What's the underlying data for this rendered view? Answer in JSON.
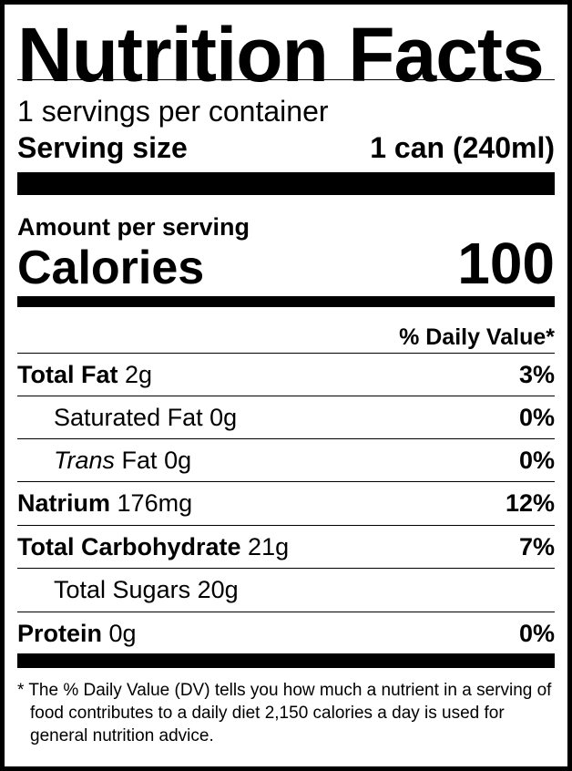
{
  "title": "Nutrition Facts",
  "servings_per_container": "1 servings per container",
  "serving_size": {
    "label": "Serving size",
    "value": "1 can (240ml)"
  },
  "amount_per_serving": "Amount per serving",
  "calories": {
    "label": "Calories",
    "value": "100"
  },
  "daily_value_header": "% Daily Value*",
  "nutrients": [
    {
      "label": "Total Fat",
      "amount": "2g",
      "dv": "3%"
    },
    {
      "label": "Saturated Fat",
      "amount": "0g",
      "dv": "0%"
    },
    {
      "label_italic": "Trans",
      "label": "Fat",
      "amount": "0g",
      "dv": "0%"
    },
    {
      "label": "Natrium",
      "amount": "176mg",
      "dv": "12%"
    },
    {
      "label": "Total Carbohydrate",
      "amount": "21g",
      "dv": "7%"
    },
    {
      "label": "Total Sugars",
      "amount": "20g"
    },
    {
      "label": "Protein",
      "amount": "0g",
      "dv": "0%"
    }
  ],
  "footnote": "* The % Daily Value (DV) tells you how much a nutrient in a serving of food contributes to a daily diet 2,150 calories a day is used for general nutrition advice."
}
